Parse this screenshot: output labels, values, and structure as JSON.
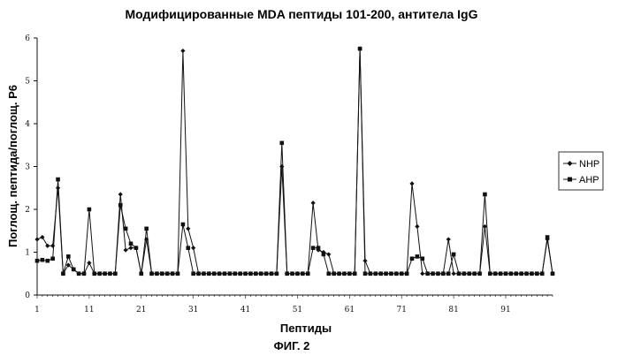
{
  "chart_data": {
    "type": "line",
    "title": "Модифицированные MDA пептиды 101-200, антитела IgG",
    "xlabel": "Пептиды",
    "ylabel": "Поглощ. пептида/поглощ. P6",
    "figure_label": "ФИГ. 2",
    "xlim": [
      1,
      100
    ],
    "ylim": [
      0,
      6
    ],
    "x_ticks": [
      1,
      11,
      21,
      31,
      41,
      51,
      61,
      71,
      81,
      91
    ],
    "y_ticks": [
      0,
      1,
      2,
      3,
      4,
      5,
      6
    ],
    "legend_position": "right",
    "grid": false,
    "series": [
      {
        "name": "NHP",
        "marker": "diamond",
        "values": [
          1.3,
          1.35,
          1.15,
          1.15,
          2.5,
          0.5,
          0.7,
          0.6,
          0.5,
          0.5,
          0.75,
          0.5,
          0.5,
          0.5,
          0.5,
          0.5,
          2.35,
          1.05,
          1.1,
          1.1,
          0.5,
          1.3,
          0.5,
          0.5,
          0.5,
          0.5,
          0.5,
          0.5,
          5.7,
          1.55,
          1.1,
          0.5,
          0.5,
          0.5,
          0.5,
          0.5,
          0.5,
          0.5,
          0.5,
          0.5,
          0.5,
          0.5,
          0.5,
          0.5,
          0.5,
          0.5,
          0.5,
          3.0,
          0.5,
          0.5,
          0.5,
          0.5,
          0.5,
          2.15,
          1.05,
          1.0,
          0.95,
          0.5,
          0.5,
          0.5,
          0.5,
          0.5,
          5.75,
          0.8,
          0.5,
          0.5,
          0.5,
          0.5,
          0.5,
          0.5,
          0.5,
          0.5,
          2.6,
          1.6,
          0.5,
          0.5,
          0.5,
          0.5,
          0.5,
          1.3,
          0.5,
          0.5,
          0.5,
          0.5,
          0.5,
          0.5,
          1.6,
          0.5,
          0.5,
          0.5,
          0.5,
          0.5,
          0.5,
          0.5,
          0.5,
          0.5,
          0.5,
          0.5,
          1.3,
          0.5
        ]
      },
      {
        "name": "AHP",
        "marker": "square",
        "values": [
          0.8,
          0.82,
          0.8,
          0.85,
          2.7,
          0.5,
          0.9,
          0.6,
          0.5,
          0.5,
          2.0,
          0.5,
          0.5,
          0.5,
          0.5,
          0.5,
          2.1,
          1.55,
          1.2,
          1.1,
          0.5,
          1.55,
          0.5,
          0.5,
          0.5,
          0.5,
          0.5,
          0.5,
          1.65,
          1.1,
          0.5,
          0.5,
          0.5,
          0.5,
          0.5,
          0.5,
          0.5,
          0.5,
          0.5,
          0.5,
          0.5,
          0.5,
          0.5,
          0.5,
          0.5,
          0.5,
          0.5,
          3.55,
          0.5,
          0.5,
          0.5,
          0.5,
          0.5,
          1.1,
          1.1,
          0.95,
          0.5,
          0.5,
          0.5,
          0.5,
          0.5,
          0.5,
          5.75,
          0.5,
          0.5,
          0.5,
          0.5,
          0.5,
          0.5,
          0.5,
          0.5,
          0.5,
          0.85,
          0.9,
          0.85,
          0.5,
          0.5,
          0.5,
          0.5,
          0.5,
          0.95,
          0.5,
          0.5,
          0.5,
          0.5,
          0.5,
          2.35,
          0.5,
          0.5,
          0.5,
          0.5,
          0.5,
          0.5,
          0.5,
          0.5,
          0.5,
          0.5,
          0.5,
          1.35,
          0.5
        ]
      }
    ]
  }
}
